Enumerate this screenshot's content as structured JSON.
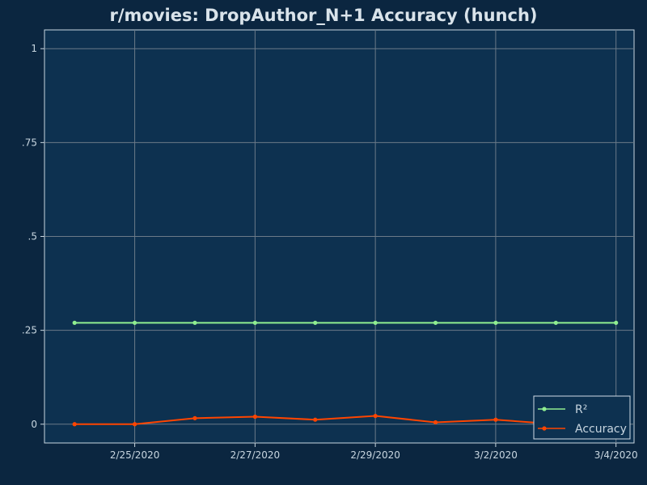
{
  "chart_data": {
    "type": "line",
    "title": "r/movies: DropAuthor_N+1 Accuracy (hunch)",
    "xlabel": "",
    "ylabel": "",
    "x": [
      "2/24/2020",
      "2/25/2020",
      "2/26/2020",
      "2/27/2020",
      "2/28/2020",
      "2/29/2020",
      "3/1/2020",
      "3/2/2020",
      "3/3/2020",
      "3/4/2020"
    ],
    "x_tick_labels": [
      "2/25/2020",
      "2/27/2020",
      "2/29/2020",
      "3/2/2020",
      "3/4/2020"
    ],
    "x_tick_dates": [
      "2/25/2020",
      "2/27/2020",
      "2/29/2020",
      "3/2/2020",
      "3/4/2020"
    ],
    "ylim": [
      -0.05,
      1.05
    ],
    "y_ticks": [
      0,
      0.25,
      0.5,
      0.75,
      1
    ],
    "y_tick_labels": [
      "0",
      ".25",
      ".5",
      ".75",
      "1"
    ],
    "grid": true,
    "legend_position": "bottom-right",
    "series": [
      {
        "name": "R²",
        "color": "#90ee90",
        "values": [
          0.27,
          0.27,
          0.27,
          0.27,
          0.27,
          0.27,
          0.27,
          0.27,
          0.27,
          0.27
        ]
      },
      {
        "name": "Accuracy",
        "color": "#ff4500",
        "values": [
          0.0,
          0.0,
          0.016,
          0.02,
          0.012,
          0.022,
          0.005,
          0.012,
          0.0,
          0.0
        ]
      }
    ]
  },
  "colors": {
    "background": "#0b2640",
    "plot_background": "#0d3150",
    "grid": "#6b7a88",
    "axis": "#c8d6e0",
    "text": "#c8d6e0",
    "title": "#d9e3ea"
  }
}
